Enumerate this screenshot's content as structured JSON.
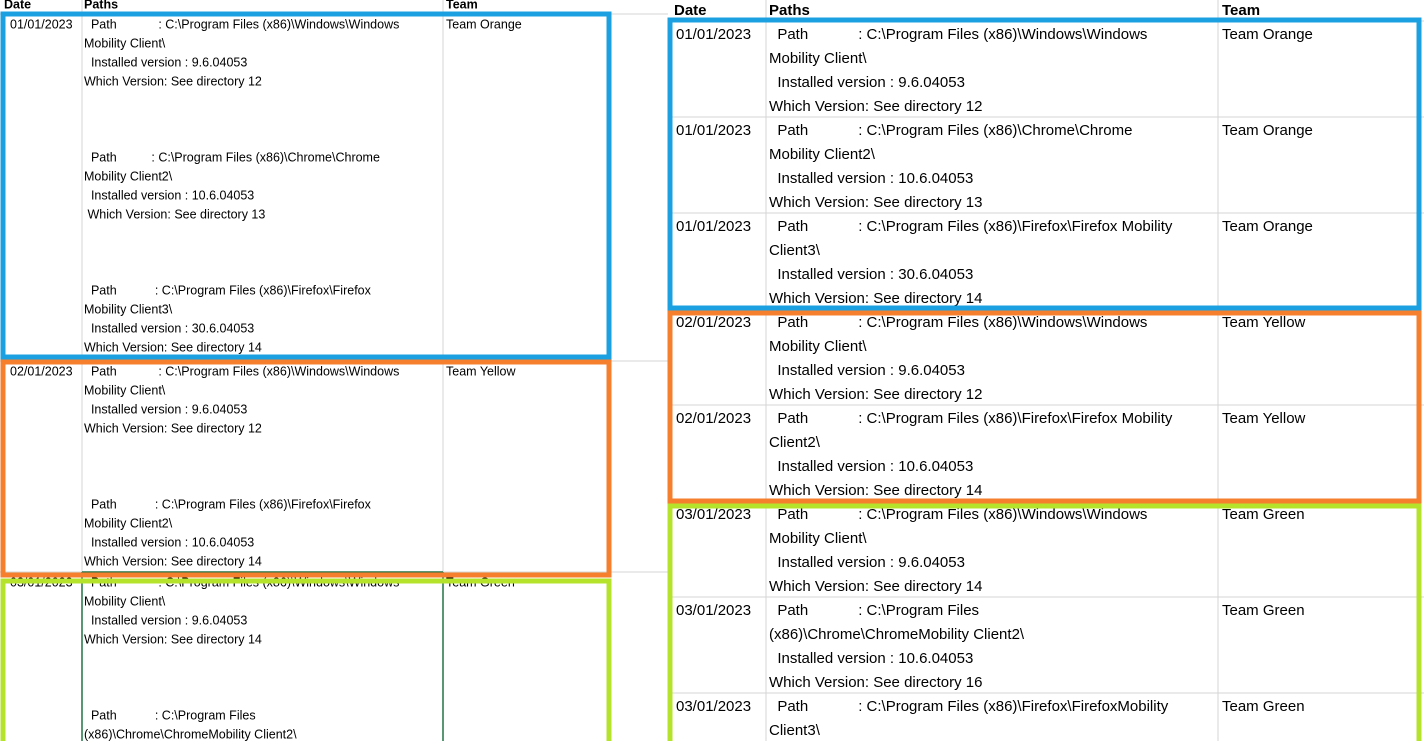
{
  "left": {
    "headers": [
      "Date",
      "Paths",
      "Team"
    ],
    "rows": [
      {
        "date": "01/01/2023",
        "team": "Team Orange",
        "entries": [
          [
            "  Path            : C:\\Program Files (x86)\\Windows\\Windows",
            "Mobility Client\\",
            "  Installed version : 9.6.04053",
            "Which Version: See directory 12"
          ],
          [
            "  Path          : C:\\Program Files (x86)\\Chrome\\Chrome",
            "Mobility Client2\\",
            "  Installed version : 10.6.04053",
            " Which Version: See directory 13"
          ],
          [
            "  Path           : C:\\Program Files (x86)\\Firefox\\Firefox",
            "Mobility Client3\\",
            "  Installed version : 30.6.04053",
            "Which Version: See directory 14"
          ]
        ]
      },
      {
        "date": "02/01/2023",
        "team": "Team Yellow",
        "entries": [
          [
            "  Path            : C:\\Program Files (x86)\\Windows\\Windows",
            "Mobility Client\\",
            "  Installed version : 9.6.04053",
            "Which Version: See directory 12"
          ],
          [
            "  Path           : C:\\Program Files (x86)\\Firefox\\Firefox",
            "Mobility Client2\\",
            "  Installed version : 10.6.04053",
            "Which Version: See directory 14"
          ]
        ]
      },
      {
        "date": "03/01/2023",
        "team": "Team Green",
        "entries": [
          [
            "  Path            : C:\\Program Files (x86)\\Windows\\Windows",
            "Mobility Client\\",
            "  Installed version : 9.6.04053",
            "Which Version: See directory 14"
          ],
          [
            "  Path           : C:\\Program Files",
            "(x86)\\Chrome\\ChromeMobility Client2\\"
          ]
        ]
      }
    ]
  },
  "right": {
    "headers": [
      "Date",
      "Paths",
      "Team"
    ],
    "rows": [
      {
        "date": "01/01/2023",
        "team": "Team Orange",
        "lines": [
          "  Path            : C:\\Program Files (x86)\\Windows\\Windows",
          "Mobility Client\\",
          "  Installed version : 9.6.04053",
          "Which Version: See directory 12"
        ]
      },
      {
        "date": "01/01/2023",
        "team": "Team Orange",
        "lines": [
          "  Path            : C:\\Program Files (x86)\\Chrome\\Chrome",
          "Mobility Client2\\",
          "  Installed version : 10.6.04053",
          "Which Version: See directory 13"
        ]
      },
      {
        "date": "01/01/2023",
        "team": "Team Orange",
        "lines": [
          "  Path            : C:\\Program Files (x86)\\Firefox\\Firefox Mobility",
          "Client3\\",
          "  Installed version : 30.6.04053",
          "Which Version: See directory 14"
        ]
      },
      {
        "date": "02/01/2023",
        "team": "Team Yellow",
        "lines": [
          "  Path            : C:\\Program Files (x86)\\Windows\\Windows",
          "Mobility Client\\",
          "  Installed version : 9.6.04053",
          "Which Version: See directory 12"
        ]
      },
      {
        "date": "02/01/2023",
        "team": "Team Yellow",
        "lines": [
          "  Path            : C:\\Program Files (x86)\\Firefox\\Firefox Mobility",
          "Client2\\",
          "  Installed version : 10.6.04053",
          "Which Version: See directory 14"
        ]
      },
      {
        "date": "03/01/2023",
        "team": "Team Green",
        "lines": [
          "  Path            : C:\\Program Files (x86)\\Windows\\Windows",
          "Mobility Client\\",
          "  Installed version : 9.6.04053",
          "Which Version: See directory 14"
        ]
      },
      {
        "date": "03/01/2023",
        "team": "Team Green",
        "lines": [
          "  Path            : C:\\Program Files",
          "(x86)\\Chrome\\ChromeMobility Client2\\",
          "  Installed version : 10.6.04053",
          "Which Version: See directory 16"
        ]
      },
      {
        "date": "03/01/2023",
        "team": "Team Green",
        "lines": [
          "  Path            : C:\\Program Files (x86)\\Firefox\\FirefoxMobility",
          "Client3\\"
        ]
      }
    ]
  }
}
